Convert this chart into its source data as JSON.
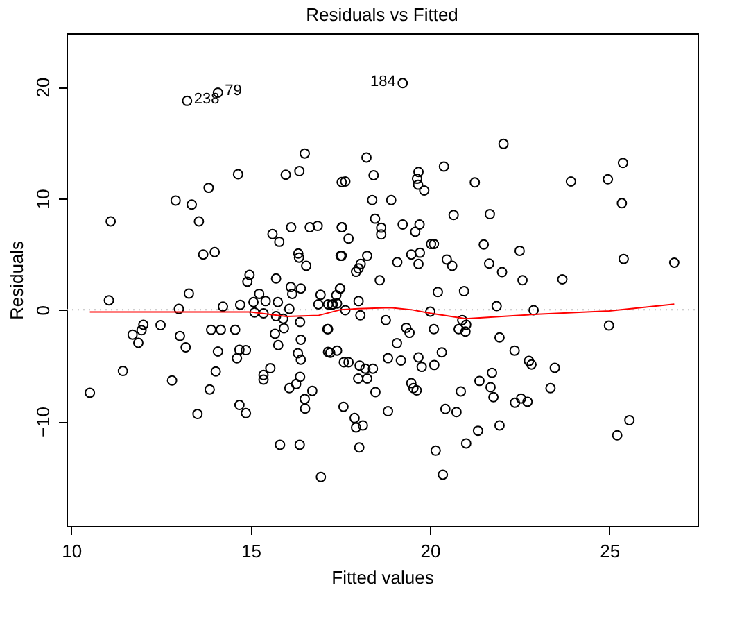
{
  "chart_data": {
    "type": "scatter",
    "title": "Residuals vs Fitted",
    "xlabel": "Fitted values",
    "ylabel": "Residuals",
    "xlim": [
      9.87,
      27.46
    ],
    "ylim": [
      -19.4,
      24.8
    ],
    "xticks": [
      10,
      15,
      20,
      25
    ],
    "yticks": [
      -10,
      0,
      10,
      20
    ],
    "ref_lines": [
      {
        "axis": "y",
        "value": 0,
        "color": "#bebebe",
        "line_style": "dotted"
      }
    ],
    "annotations": [
      {
        "text": "238",
        "x": 13.23,
        "y": 18.74
      },
      {
        "text": "79",
        "x": 14.09,
        "y": 19.48
      },
      {
        "text": "184",
        "x": 19.24,
        "y": 20.33
      }
    ],
    "series": [
      {
        "color": "#000000",
        "marker": "circle",
        "x": [
          13.23,
          14.09,
          11.1,
          11.05,
          12.91,
          13.36,
          13.56,
          13.83,
          13.68,
          14.0,
          13.28,
          13.0,
          14.23,
          14.65,
          14.71,
          14.97,
          14.91,
          15.08,
          15.24,
          15.42,
          15.71,
          15.76,
          16.08,
          15.61,
          15.8,
          15.98,
          16.36,
          16.51,
          16.13,
          16.65,
          16.87,
          16.33,
          16.35,
          16.55,
          16.12,
          16.16,
          16.4,
          16.95,
          16.89,
          17.54,
          17.54,
          17.51,
          17.49,
          17.29,
          19.24,
          22.05,
          18.23,
          17.64,
          18.43,
          19.68,
          19.64,
          19.67,
          19.84,
          20.39,
          21.25,
          23.93,
          24.96,
          25.38,
          25.35,
          18.39,
          18.92,
          18.47,
          18.64,
          18.64,
          17.55,
          17.73,
          19.24,
          19.71,
          19.59,
          20.66,
          21.67,
          20.03,
          20.11,
          21.5,
          22.5,
          17.54,
          18.25,
          19.48,
          19.72,
          19.68,
          20.47,
          20.62,
          21.65,
          22.01,
          22.58,
          23.69,
          25.4,
          26.81,
          18.07,
          18.01,
          17.94,
          19.09,
          18.6,
          20.22,
          20.95,
          17.5,
          17.39,
          17.41,
          17.26,
          18.01,
          21.86,
          20.01,
          22.89,
          17.64,
          18.06,
          18.77,
          19.34,
          19.43,
          20.11,
          20.8,
          20.9,
          21.01,
          20.99,
          21.94,
          24.99,
          17.16,
          17.41,
          17.22,
          19.08,
          22.36,
          17.6,
          17.73,
          18.04,
          18.2,
          18.41,
          18.83,
          19.19,
          19.68,
          19.77,
          20.33,
          20.12,
          22.76,
          22.83,
          23.48,
          18.0,
          18.25,
          18.48,
          19.48,
          19.54,
          19.63,
          20.86,
          21.38,
          21.73,
          21.69,
          21.77,
          22.37,
          22.54,
          22.72,
          23.36,
          17.59,
          18.83,
          20.43,
          20.74,
          17.9,
          17.94,
          18.13,
          18.03,
          21.34,
          21.01,
          21.94,
          20.16,
          20.36,
          25.56,
          25.22,
          10.52,
          11.44,
          11.71,
          12.01,
          11.96,
          11.87,
          12.49,
          12.81,
          13.03,
          13.19,
          13.52,
          13.86,
          13.9,
          14.17,
          14.09,
          14.03,
          14.57,
          14.62,
          14.69,
          14.87,
          14.69,
          14.87,
          15.11,
          15.36,
          15.36,
          15.36,
          15.55,
          15.71,
          15.68,
          15.77,
          15.93,
          15.91,
          16.08,
          15.82,
          16.37,
          16.27,
          16.38,
          16.32,
          16.4,
          16.4,
          16.38,
          16.51,
          16.52,
          16.72,
          16.96,
          17.14,
          17.16,
          17.16
        ],
        "values": [
          18.74,
          19.48,
          7.93,
          0.85,
          9.8,
          9.44,
          7.93,
          10.94,
          4.96,
          5.17,
          1.46,
          0.08,
          0.29,
          12.16,
          0.45,
          3.13,
          2.52,
          0.69,
          1.43,
          0.78,
          2.81,
          0.69,
          0.08,
          6.79,
          6.1,
          12.12,
          12.44,
          14.02,
          7.4,
          7.4,
          7.52,
          5.05,
          4.68,
          3.95,
          2.04,
          1.43,
          1.91,
          1.34,
          0.49,
          11.46,
          7.4,
          4.84,
          1.91,
          0.49,
          20.33,
          14.88,
          13.66,
          11.51,
          12.07,
          12.37,
          11.76,
          11.22,
          10.7,
          12.85,
          11.43,
          11.51,
          11.71,
          13.17,
          9.56,
          9.84,
          9.84,
          8.17,
          7.36,
          6.76,
          7.4,
          6.39,
          7.65,
          7.65,
          7.0,
          8.5,
          8.58,
          5.9,
          5.9,
          5.86,
          5.29,
          4.84,
          4.84,
          4.96,
          5.12,
          4.11,
          4.51,
          3.95,
          4.15,
          3.38,
          2.65,
          2.73,
          4.56,
          4.23,
          4.11,
          3.71,
          3.41,
          4.27,
          2.65,
          1.59,
          1.67,
          1.91,
          1.3,
          0.57,
          0.45,
          0.78,
          0.33,
          -0.16,
          -0.04,
          -0.04,
          -0.49,
          -0.93,
          -1.62,
          -2.07,
          -1.74,
          -1.74,
          -0.93,
          -1.34,
          -1.95,
          -2.48,
          -1.41,
          -1.74,
          -3.66,
          -3.85,
          -3.0,
          -3.66,
          -4.71,
          -4.71,
          -5.0,
          -5.28,
          -5.28,
          -4.34,
          -4.55,
          -4.27,
          -5.12,
          -3.82,
          -4.95,
          -4.59,
          -4.91,
          -5.2,
          -6.17,
          -6.17,
          -7.39,
          -6.58,
          -7.03,
          -7.23,
          -7.32,
          -6.38,
          -5.65,
          -6.95,
          -7.84,
          -8.33,
          -7.96,
          -8.25,
          -7.03,
          -8.7,
          -9.1,
          -8.9,
          -9.18,
          -9.71,
          -10.56,
          -10.37,
          -12.35,
          -10.85,
          -11.99,
          -10.37,
          -12.63,
          -14.79,
          -9.91,
          -11.26,
          -7.44,
          -5.49,
          -2.23,
          -1.34,
          -1.83,
          -2.96,
          -1.38,
          -6.34,
          -2.35,
          -3.37,
          -9.35,
          -7.15,
          -1.79,
          -1.79,
          -3.74,
          -5.53,
          -1.79,
          -4.35,
          -3.58,
          -3.62,
          -8.54,
          -9.27,
          -0.24,
          -0.32,
          -5.85,
          -6.26,
          -5.24,
          -0.57,
          -2.15,
          -3.17,
          -1.66,
          -0.8,
          -7.03,
          -12.11,
          -12.11,
          -6.66,
          -6.01,
          -3.9,
          -4.47,
          -2.68,
          -1.1,
          -8.0,
          -8.86,
          -7.27,
          -15.0,
          -1.74,
          -3.78,
          0.49
        ]
      },
      {
        "type": "line",
        "color": "#ff0000",
        "marker": "none",
        "line_style": "solid",
        "x": [
          10.52,
          12,
          14,
          15,
          16,
          16.9,
          17.5,
          18.0,
          18.9,
          19.5,
          20.0,
          21.0,
          22.0,
          23.0,
          25,
          26.81
        ],
        "values": [
          -0.2,
          -0.2,
          -0.2,
          -0.2,
          -0.6,
          -0.5,
          0.0,
          0.1,
          0.2,
          0.0,
          -0.3,
          -0.8,
          -0.6,
          -0.4,
          -0.1,
          0.5
        ]
      }
    ]
  }
}
